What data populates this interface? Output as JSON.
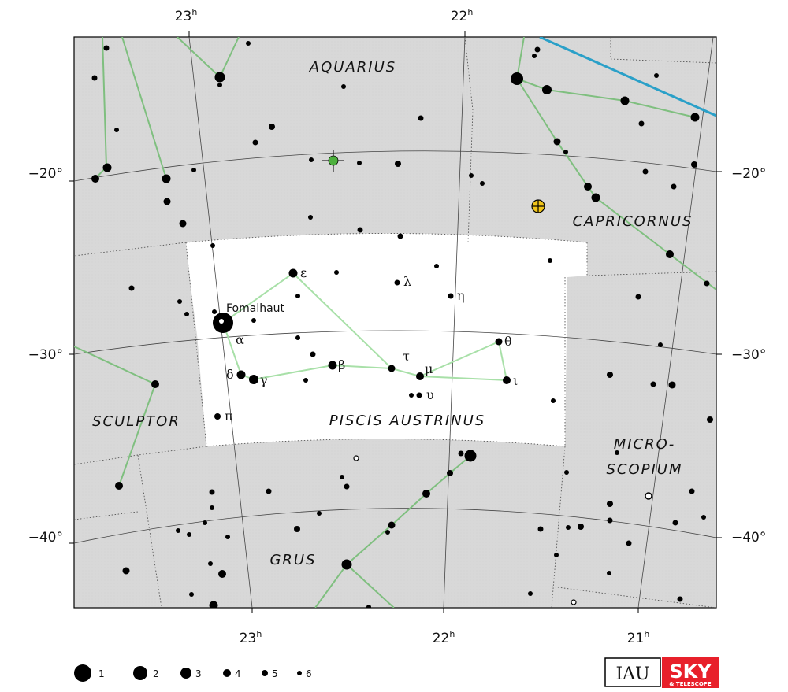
{
  "ra_labels_top": [
    "23",
    "22"
  ],
  "ra_labels_bottom": [
    "23",
    "22",
    "21"
  ],
  "ra_unit": "h",
  "dec_labels": [
    "−20°",
    "−30°",
    "−40°"
  ],
  "constellations": {
    "aquarius": "AQUARIUS",
    "capricornus": "CAPRICORNUS",
    "sculptor": "SCULPTOR",
    "piscis_austrinus": "PISCIS AUSTRINUS",
    "microscopium_line1": "MICRO-",
    "microscopium_line2": "SCOPIUM",
    "grus": "GRUS"
  },
  "star_names": {
    "fomalhaut": "Fomalhaut"
  },
  "greek_labels": {
    "epsilon": "ε",
    "lambda": "λ",
    "eta": "η",
    "alpha": "α",
    "theta": "θ",
    "tau": "τ",
    "mu": "μ",
    "beta": "β",
    "delta": "δ",
    "gamma": "γ",
    "iota": "ι",
    "upsilon": "υ",
    "pi": "π"
  },
  "legend": {
    "magnitudes": [
      "1",
      "2",
      "3",
      "4",
      "5",
      "6"
    ]
  },
  "logos": {
    "iau": "IAU",
    "sky": "SKY",
    "sky_sub": "& TELESCOPE"
  },
  "colors": {
    "sky_fill": "#d9d9d9",
    "highlight_fill": "#ffffff",
    "figure_line": "#7fbf7f",
    "figure_line_highlight": "#a8e0a8",
    "ecliptic": "#2aa0c8",
    "star": "#000000",
    "planet_green": "#4caf3c",
    "planet_yellow": "#f0c419",
    "sky_logo": "#e8202a"
  }
}
